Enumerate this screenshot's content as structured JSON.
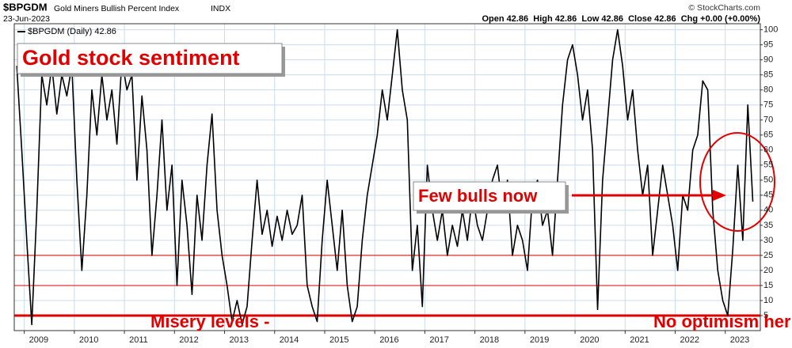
{
  "chart_data": {
    "type": "line",
    "title": "$BPGDM",
    "subtitle": "Gold Miners Bullish Percent Index",
    "exchange": "INDX",
    "date": "23-Jun-2023",
    "quote": "Open 42.86  High 42.86  Low 42.86  Close 42.86  Chg +0.00 (+0.00%)",
    "credit": "© StockCharts.com",
    "x": [
      2008.85,
      2008.95,
      2009.05,
      2009.15,
      2009.25,
      2009.35,
      2009.45,
      2009.55,
      2009.65,
      2009.75,
      2009.85,
      2009.95,
      2010.05,
      2010.15,
      2010.25,
      2010.35,
      2010.45,
      2010.55,
      2010.65,
      2010.75,
      2010.85,
      2010.95,
      2011.05,
      2011.15,
      2011.25,
      2011.35,
      2011.45,
      2011.55,
      2011.65,
      2011.75,
      2011.85,
      2011.95,
      2012.05,
      2012.15,
      2012.25,
      2012.35,
      2012.45,
      2012.55,
      2012.65,
      2012.75,
      2012.85,
      2012.95,
      2013.05,
      2013.15,
      2013.25,
      2013.35,
      2013.45,
      2013.55,
      2013.65,
      2013.75,
      2013.85,
      2013.95,
      2014.05,
      2014.15,
      2014.25,
      2014.35,
      2014.45,
      2014.55,
      2014.65,
      2014.75,
      2014.85,
      2014.95,
      2015.05,
      2015.15,
      2015.25,
      2015.35,
      2015.45,
      2015.55,
      2015.65,
      2015.75,
      2015.85,
      2015.95,
      2016.05,
      2016.15,
      2016.25,
      2016.35,
      2016.45,
      2016.55,
      2016.65,
      2016.75,
      2016.85,
      2016.95,
      2017.05,
      2017.15,
      2017.25,
      2017.35,
      2017.45,
      2017.55,
      2017.65,
      2017.75,
      2017.85,
      2017.95,
      2018.05,
      2018.15,
      2018.25,
      2018.35,
      2018.45,
      2018.55,
      2018.65,
      2018.75,
      2018.85,
      2018.95,
      2019.05,
      2019.15,
      2019.25,
      2019.35,
      2019.45,
      2019.55,
      2019.65,
      2019.75,
      2019.85,
      2019.95,
      2020.05,
      2020.15,
      2020.25,
      2020.35,
      2020.45,
      2020.55,
      2020.65,
      2020.75,
      2020.85,
      2020.95,
      2021.05,
      2021.15,
      2021.25,
      2021.35,
      2021.45,
      2021.55,
      2021.65,
      2021.75,
      2021.85,
      2021.95,
      2022.05,
      2022.15,
      2022.25,
      2022.35,
      2022.45,
      2022.55,
      2022.65,
      2022.75,
      2022.85,
      2022.95,
      2023.05,
      2023.15,
      2023.25,
      2023.35,
      2023.45,
      2023.55
    ],
    "series": [
      {
        "name": "$BPGDM (Daily) 42.86",
        "color": "#000000",
        "values": [
          88,
          60,
          30,
          2,
          40,
          85,
          75,
          88,
          72,
          85,
          78,
          88,
          50,
          20,
          45,
          80,
          65,
          85,
          70,
          80,
          62,
          90,
          80,
          85,
          50,
          78,
          60,
          25,
          45,
          70,
          40,
          55,
          15,
          50,
          35,
          12,
          45,
          30,
          55,
          72,
          40,
          25,
          15,
          3,
          10,
          2,
          8,
          30,
          50,
          32,
          40,
          28,
          38,
          30,
          40,
          32,
          35,
          45,
          15,
          8,
          3,
          30,
          50,
          35,
          20,
          40,
          15,
          3,
          8,
          30,
          45,
          55,
          65,
          80,
          70,
          85,
          100,
          80,
          70,
          20,
          35,
          8,
          55,
          40,
          30,
          40,
          25,
          35,
          28,
          40,
          30,
          45,
          35,
          30,
          40,
          50,
          55,
          40,
          50,
          25,
          35,
          30,
          20,
          45,
          50,
          35,
          40,
          25,
          50,
          75,
          90,
          95,
          85,
          70,
          80,
          60,
          7,
          50,
          70,
          90,
          100,
          88,
          70,
          80,
          60,
          45,
          55,
          25,
          40,
          55,
          45,
          35,
          20,
          45,
          40,
          60,
          65,
          83,
          80,
          40,
          20,
          10,
          5,
          27,
          55,
          30,
          75,
          42.86
        ]
      }
    ],
    "xlim": [
      2008.8,
      2023.7
    ],
    "xticks": [
      2009,
      2010,
      2011,
      2012,
      2013,
      2014,
      2015,
      2016,
      2017,
      2018,
      2019,
      2020,
      2021,
      2022,
      2023
    ],
    "ylim": [
      0,
      102
    ],
    "yticks": [
      5,
      10,
      15,
      20,
      25,
      30,
      35,
      40,
      45,
      50,
      55,
      60,
      65,
      70,
      75,
      80,
      85,
      90,
      95,
      100
    ],
    "grid": true,
    "grid_color": "#c9dcef",
    "reference_lines": [
      {
        "value": 25,
        "color": "#e00000"
      },
      {
        "value": 15,
        "color": "#e00000"
      },
      {
        "value": 5,
        "color": "#e00000"
      }
    ],
    "annotations": [
      {
        "text": "Gold stock sentiment"
      },
      {
        "text": "Few bulls now"
      },
      {
        "text": "Misery levels -"
      },
      {
        "text": "No optimism here"
      }
    ]
  }
}
